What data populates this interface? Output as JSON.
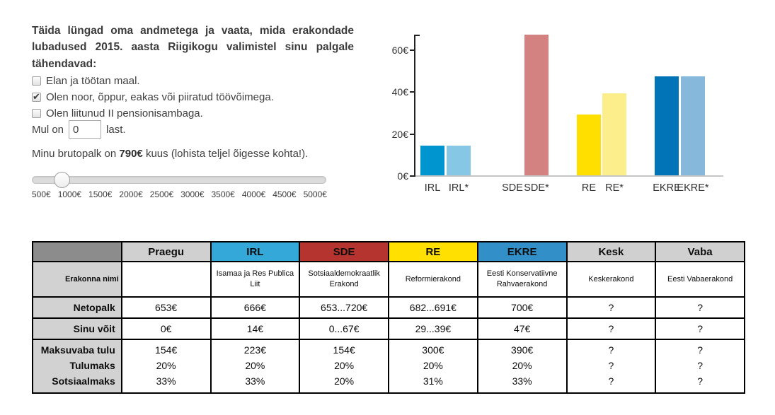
{
  "intro_text": "Täida lüngad oma andmetega ja vaata, mida erakondade lubadused 2015. aasta Riigikogu valimistel sinu palgale tähendavad:",
  "checkboxes": [
    {
      "label": "Elan ja töötan maal.",
      "checked": false
    },
    {
      "label": "Olen noor, õppur, eakas või piiratud töövõimega.",
      "checked": true
    },
    {
      "label": "Olen liitunud II pensionisambaga.",
      "checked": false
    }
  ],
  "children_row": {
    "prefix": "Mul on",
    "value": "0",
    "suffix": "last."
  },
  "salary_row": {
    "prefix": "Minu brutopalk on",
    "value": "790€",
    "suffix": "kuus (lohista teljel õigesse kohta!)."
  },
  "slider": {
    "min": 500,
    "max": 5000,
    "value": 790,
    "tick_labels": [
      "500€",
      "1000€",
      "1500€",
      "2000€",
      "2500€",
      "3000€",
      "3500€",
      "4000€",
      "4500€",
      "5000€"
    ]
  },
  "chart_data": {
    "type": "bar",
    "title": "",
    "xlabel": "",
    "ylabel": "",
    "categories": [
      "IRL",
      "IRL*",
      "SDE",
      "SDE*",
      "RE",
      "RE*",
      "EKRE",
      "EKRE*"
    ],
    "values": [
      14,
      14,
      0,
      67,
      29,
      39,
      47,
      47
    ],
    "colors": [
      "#0095ce",
      "#87c7e6",
      "#b5342f",
      "#d48181",
      "#ffdf00",
      "#fcee8a",
      "#0074b6",
      "#86b8db"
    ],
    "ylim": [
      0,
      67
    ],
    "ytick_values": [
      0,
      20,
      40,
      60
    ],
    "ytick_labels": [
      "0€",
      "20€",
      "40€",
      "60€"
    ],
    "grid": false,
    "legend": "none"
  },
  "table": {
    "header": [
      {
        "label": "",
        "bg": "#8c8c8c"
      },
      {
        "label": "Praegu",
        "bg": "#d0d0d0"
      },
      {
        "label": "IRL",
        "bg": "#35a8da"
      },
      {
        "label": "SDE",
        "bg": "#b5342f"
      },
      {
        "label": "RE",
        "bg": "#ffe000"
      },
      {
        "label": "EKRE",
        "bg": "#338fc8"
      },
      {
        "label": "Kesk",
        "bg": "#d0d0d0"
      },
      {
        "label": "Vaba",
        "bg": "#d0d0d0"
      }
    ],
    "rows": [
      {
        "kind": "names",
        "label": [
          "Erakonna nimi"
        ],
        "cells": [
          "",
          "Isamaa ja Res Publica Liit",
          "Sotsiaaldemokraatlik Erakond",
          "Reformierakond",
          "Eesti Konservatiivne Rahvaerakond",
          "Keskerakond",
          "Eesti Vabaerakond"
        ]
      },
      {
        "kind": "simple",
        "label": [
          "Netopalk"
        ],
        "cells": [
          "653€",
          "666€",
          "653...720€",
          "682...691€",
          "700€",
          "?",
          "?"
        ]
      },
      {
        "kind": "simple",
        "label": [
          "Sinu võit"
        ],
        "cells": [
          "0€",
          "14€",
          "0...67€",
          "29...39€",
          "47€",
          "?",
          "?"
        ]
      },
      {
        "kind": "taxes",
        "label": [
          "Maksuvaba tulu",
          "Tulumaks",
          "Sotsiaalmaks"
        ],
        "cells": [
          [
            "154€",
            "20%",
            "33%"
          ],
          [
            "223€",
            "20%",
            "33%"
          ],
          [
            "154€",
            "20%",
            "20%"
          ],
          [
            "300€",
            "20%",
            "31%"
          ],
          [
            "390€",
            "20%",
            "33%"
          ],
          [
            "?",
            "?",
            "?"
          ],
          [
            "?",
            "?",
            "?"
          ]
        ]
      }
    ]
  }
}
